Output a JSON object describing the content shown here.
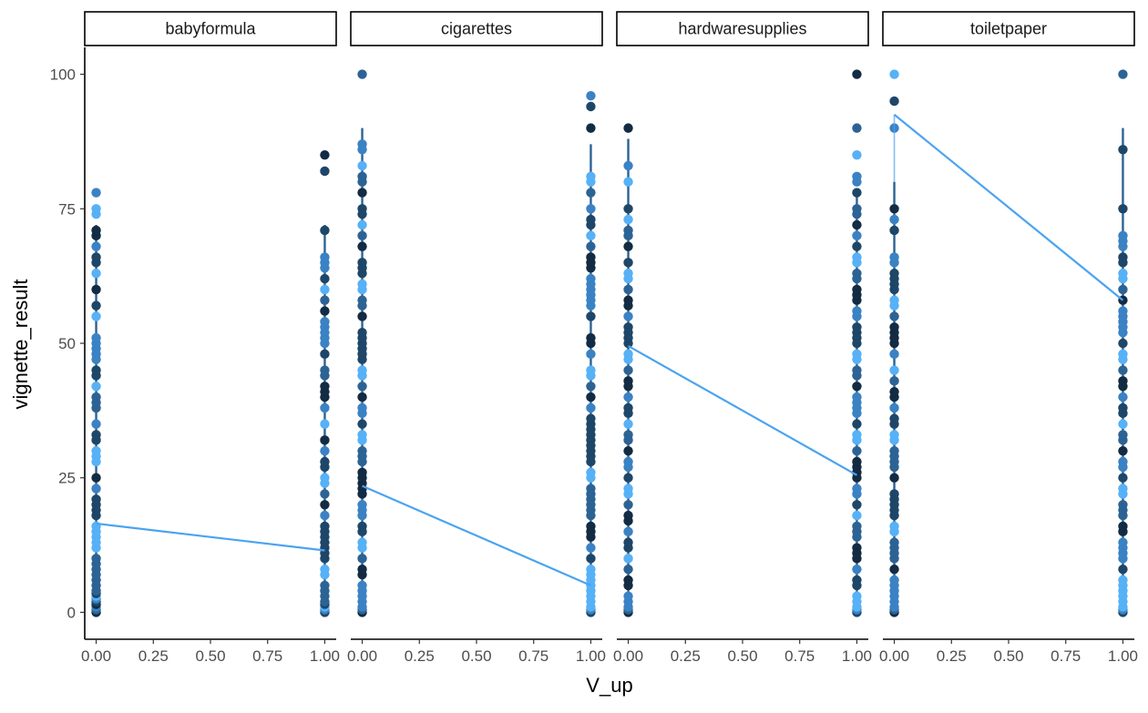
{
  "chart_data": {
    "type": "scatter",
    "xlabel": "V_up",
    "ylabel": "vignette_result",
    "xlim": [
      -0.05,
      1.05
    ],
    "ylim": [
      -5,
      105
    ],
    "x_ticks": [
      0,
      0.25,
      0.5,
      0.75,
      1
    ],
    "x_tick_labels": [
      "0.00",
      "0.25",
      "0.50",
      "0.75",
      "1.00"
    ],
    "y_ticks": [
      0,
      25,
      50,
      75,
      100
    ],
    "y_tick_labels": [
      "0",
      "25",
      "50",
      "75",
      "100"
    ],
    "grid": false,
    "legend": "none",
    "point_colors": [
      "#132b43",
      "#1e4668",
      "#2c6394",
      "#3a82c4",
      "#56b1f7"
    ],
    "line_color": "#4aa3f0",
    "panels": [
      {
        "label": "babyformula",
        "points_x0": [
          0,
          0.5,
          1,
          1.5,
          2,
          2.5,
          3,
          3.5,
          4,
          5,
          6,
          7,
          8,
          9,
          10,
          12,
          13,
          14,
          15,
          16,
          18,
          19,
          20,
          21,
          23,
          25,
          28,
          29,
          30,
          32,
          33,
          35,
          38,
          39,
          40,
          42,
          44,
          45,
          47,
          48,
          49,
          50,
          51,
          55,
          57,
          60,
          63,
          65,
          66,
          68,
          70,
          71,
          74,
          75,
          78
        ],
        "points_x1": [
          0,
          0.5,
          1,
          1.5,
          2,
          3,
          4,
          5,
          7,
          8,
          10,
          11,
          12,
          13,
          14,
          15,
          16,
          18,
          20,
          22,
          24,
          25,
          27,
          28,
          30,
          32,
          35,
          38,
          40,
          41,
          42,
          44,
          45,
          48,
          50,
          51,
          52,
          53,
          54,
          56,
          58,
          60,
          62,
          64,
          65,
          66,
          71,
          82,
          85
        ],
        "mean_line": [
          16.5,
          11.5
        ],
        "errorbar_x0": [
          2,
          72
        ],
        "errorbar_x1": [
          3,
          72
        ]
      },
      {
        "label": "cigarettes",
        "points_x0": [
          0,
          0.5,
          1,
          2,
          3,
          4,
          5,
          7,
          8,
          10,
          12,
          13,
          15,
          16,
          18,
          19,
          20,
          22,
          23,
          24,
          25,
          26,
          28,
          29,
          30,
          32,
          33,
          35,
          37,
          38,
          40,
          42,
          44,
          45,
          47,
          48,
          49,
          50,
          51,
          52,
          55,
          57,
          58,
          60,
          61,
          63,
          64,
          65,
          68,
          70,
          72,
          74,
          75,
          78,
          80,
          81,
          83,
          86,
          87,
          100
        ],
        "points_x1": [
          0,
          0.5,
          1,
          2,
          3,
          4,
          5,
          6,
          7,
          8,
          10,
          12,
          14,
          15,
          16,
          18,
          19,
          20,
          21,
          22,
          23,
          25,
          26,
          28,
          29,
          30,
          31,
          32,
          33,
          34,
          35,
          36,
          38,
          40,
          42,
          44,
          45,
          48,
          50,
          51,
          55,
          57,
          58,
          59,
          60,
          61,
          62,
          64,
          65,
          66,
          68,
          70,
          72,
          73,
          75,
          78,
          80,
          81,
          90,
          94,
          96
        ],
        "mean_line": [
          23.5,
          5
        ],
        "errorbar_x0": [
          2,
          90
        ],
        "errorbar_x1": [
          0,
          87
        ]
      },
      {
        "label": "hardwaresupplies",
        "points_x0": [
          0,
          0.5,
          1,
          2,
          3,
          5,
          6,
          8,
          10,
          12,
          13,
          15,
          17,
          18,
          20,
          22,
          23,
          25,
          27,
          28,
          30,
          32,
          33,
          35,
          37,
          38,
          40,
          42,
          43,
          45,
          47,
          48,
          50,
          51,
          52,
          53,
          55,
          57,
          58,
          60,
          62,
          63,
          65,
          68,
          70,
          71,
          73,
          75,
          80,
          83,
          90
        ],
        "points_x1": [
          0,
          0.5,
          1,
          2,
          3,
          5,
          6,
          8,
          10,
          11,
          12,
          14,
          15,
          16,
          18,
          20,
          22,
          23,
          25,
          26,
          27,
          28,
          30,
          32,
          33,
          35,
          37,
          38,
          39,
          40,
          42,
          44,
          45,
          47,
          48,
          50,
          51,
          52,
          53,
          55,
          56,
          58,
          59,
          60,
          62,
          63,
          65,
          66,
          68,
          70,
          72,
          74,
          75,
          78,
          80,
          81,
          85,
          90,
          100
        ],
        "mean_line": [
          49.5,
          25.5
        ],
        "errorbar_x0": [
          0,
          88
        ],
        "errorbar_x1": [
          0,
          78
        ]
      },
      {
        "label": "toiletpaper",
        "points_x0": [
          0,
          0.5,
          1,
          2,
          3,
          4,
          5,
          6,
          8,
          10,
          11,
          12,
          13,
          15,
          16,
          18,
          19,
          20,
          21,
          22,
          25,
          27,
          28,
          29,
          30,
          32,
          33,
          35,
          36,
          38,
          40,
          41,
          43,
          45,
          48,
          50,
          51,
          52,
          53,
          55,
          57,
          58,
          60,
          61,
          62,
          63,
          65,
          66,
          71,
          73,
          75,
          90,
          95,
          100
        ],
        "points_x1": [
          0,
          0.5,
          1,
          2,
          3,
          4,
          5,
          6,
          8,
          10,
          11,
          12,
          13,
          15,
          16,
          18,
          19,
          20,
          22,
          23,
          25,
          27,
          28,
          30,
          32,
          33,
          35,
          37,
          38,
          40,
          42,
          43,
          45,
          47,
          48,
          50,
          52,
          53,
          54,
          55,
          56,
          58,
          60,
          62,
          63,
          65,
          66,
          68,
          69,
          70,
          75,
          86,
          100
        ],
        "mean_line": [
          92.5,
          58
        ],
        "errorbar_x0": [
          2,
          80
        ],
        "errorbar_x1": [
          3,
          90
        ]
      }
    ]
  }
}
